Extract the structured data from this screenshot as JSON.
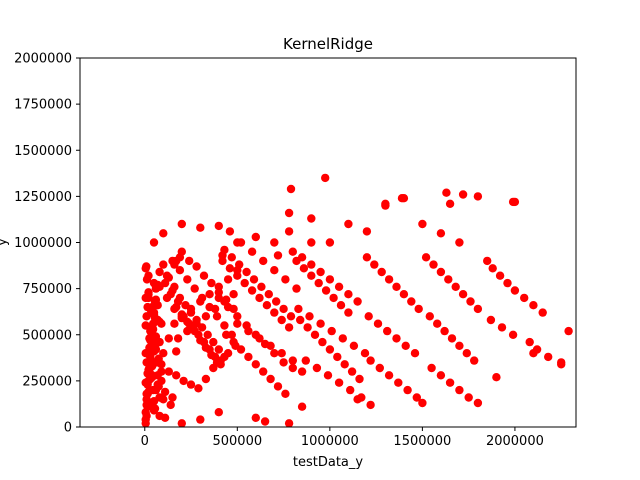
{
  "chart_data": {
    "type": "scatter",
    "title": "KernelRidge",
    "xlabel": "testData_y",
    "ylabel": "y",
    "xlim": [
      -350000,
      2330000
    ],
    "ylim": [
      0,
      2000000
    ],
    "xticks": [
      0,
      500000,
      1000000,
      1500000,
      2000000
    ],
    "xtick_labels": [
      "0",
      "500000",
      "1000000",
      "1500000",
      "2000000"
    ],
    "yticks": [
      0,
      250000,
      500000,
      750000,
      1000000,
      1250000,
      1500000,
      1750000,
      2000000
    ],
    "ytick_labels": [
      "0",
      "250000",
      "500000",
      "750000",
      "1000000",
      "1250000",
      "1500000",
      "1750000",
      "2000000"
    ],
    "grid": false,
    "marker_color": "#ff0000",
    "series": [
      {
        "x": [
          5000,
          10000,
          15000,
          20000,
          25000,
          30000,
          35000,
          40000,
          45000,
          50000,
          55000,
          60000,
          65000,
          70000,
          75000,
          80000,
          90000,
          100000,
          5000,
          10000,
          15000,
          20000,
          25000,
          30000,
          35000,
          40000,
          45000,
          50000,
          55000,
          60000,
          70000,
          80000,
          90000,
          5000,
          10000,
          15000,
          20000,
          25000,
          30000,
          40000,
          50000,
          60000,
          70000,
          80000,
          5000,
          10000,
          15000,
          20000,
          30000,
          40000,
          50000,
          60000,
          80000,
          5000,
          12000,
          20000,
          30000,
          45000,
          60000,
          75000,
          5000,
          15000,
          25000,
          40000,
          55000,
          70000,
          8000,
          20000,
          35000,
          50000,
          70000,
          90000,
          10000,
          30000,
          50000,
          80000,
          110000,
          5000,
          25000,
          60000,
          100000,
          140000,
          5000,
          40000,
          90000,
          130000,
          170000,
          20000,
          50000,
          80000,
          120000,
          160000,
          200000,
          10000,
          40000,
          70000,
          110000,
          150000,
          120000,
          150000,
          180000,
          210000,
          240000,
          270000,
          300000,
          330000,
          360000,
          390000,
          110000,
          140000,
          170000,
          200000,
          230000,
          260000,
          290000,
          320000,
          350000,
          380000,
          410000,
          100000,
          130000,
          160000,
          190000,
          220000,
          250000,
          280000,
          310000,
          340000,
          370000,
          400000,
          430000,
          150000,
          190000,
          230000,
          270000,
          310000,
          350000,
          390000,
          430000,
          470000,
          200000,
          240000,
          280000,
          320000,
          360000,
          400000,
          440000,
          480000,
          130000,
          170000,
          210000,
          250000,
          290000,
          330000,
          370000,
          410000,
          450000,
          490000,
          160000,
          200000,
          250000,
          300000,
          350000,
          400000,
          450000,
          500000,
          180000,
          230000,
          280000,
          330000,
          380000,
          430000,
          480000,
          420000,
          460000,
          500000,
          540000,
          580000,
          620000,
          660000,
          700000,
          740000,
          780000,
          440000,
          480000,
          520000,
          560000,
          600000,
          640000,
          680000,
          720000,
          760000,
          400000,
          450000,
          500000,
          550000,
          600000,
          650000,
          700000,
          750000,
          800000,
          850000,
          430000,
          470000,
          510000,
          550000,
          590000,
          630000,
          670000,
          710000,
          750000,
          790000,
          460000,
          520000,
          580000,
          640000,
          700000,
          760000,
          820000,
          500000,
          560000,
          620000,
          680000,
          740000,
          800000,
          820000,
          860000,
          900000,
          940000,
          980000,
          1020000,
          1060000,
          1100000,
          840000,
          880000,
          920000,
          960000,
          1000000,
          1040000,
          1080000,
          1120000,
          1160000,
          800000,
          850000,
          900000,
          950000,
          1000000,
          1050000,
          1100000,
          1150000,
          830000,
          890000,
          950000,
          1010000,
          1070000,
          1130000,
          1190000,
          870000,
          930000,
          990000,
          1050000,
          1110000,
          1170000,
          1200000,
          1240000,
          1280000,
          1320000,
          1360000,
          1400000,
          1440000,
          1480000,
          1210000,
          1260000,
          1310000,
          1360000,
          1410000,
          1460000,
          1220000,
          1270000,
          1320000,
          1370000,
          1420000,
          1470000,
          1500000,
          1520000,
          1560000,
          1600000,
          1640000,
          1680000,
          1720000,
          1760000,
          1800000,
          1540000,
          1580000,
          1620000,
          1660000,
          1700000,
          1740000,
          1780000,
          1550000,
          1600000,
          1650000,
          1700000,
          1750000,
          1800000,
          1850000,
          1880000,
          1920000,
          1960000,
          2000000,
          2050000,
          2100000,
          2150000,
          1870000,
          1930000,
          1990000,
          2080000,
          2120000,
          2180000,
          2250000,
          2290000,
          50000,
          100000,
          200000,
          300000,
          400000,
          500000,
          600000,
          700000,
          780000,
          900000,
          1000000,
          1100000,
          1200000,
          1300000,
          1400000,
          1500000,
          1600000,
          1700000,
          1800000,
          2000000,
          790000,
          975000,
          1630000,
          1720000,
          1990000,
          1300000,
          1390000,
          1650000,
          780000,
          900000,
          200000,
          300000,
          400000,
          600000,
          650000,
          780000,
          850000,
          1150000,
          1220000,
          1900000,
          2100000,
          2250000,
          420000,
          720000,
          160000,
          170000,
          190000
        ],
        "y": [
          40000,
          120000,
          180000,
          250000,
          320000,
          380000,
          440000,
          500000,
          560000,
          620000,
          680000,
          420000,
          350000,
          280000,
          220000,
          160000,
          300000,
          400000,
          550000,
          600000,
          650000,
          700000,
          480000,
          520000,
          360000,
          270000,
          200000,
          140000,
          100000,
          750000,
          580000,
          460000,
          340000,
          80000,
          150000,
          230000,
          310000,
          390000,
          470000,
          540000,
          610000,
          690000,
          770000,
          840000,
          20000,
          60000,
          110000,
          190000,
          260000,
          330000,
          410000,
          490000,
          570000,
          860000,
          800000,
          720000,
          640000,
          530000,
          450000,
          370000,
          240000,
          290000,
          430000,
          510000,
          590000,
          660000,
          870000,
          730000,
          620000,
          470000,
          350000,
          250000,
          180000,
          130000,
          90000,
          60000,
          50000,
          400000,
          300000,
          200000,
          150000,
          120000,
          700000,
          650000,
          560000,
          480000,
          410000,
          820000,
          780000,
          760000,
          700000,
          640000,
          590000,
          350000,
          280000,
          230000,
          190000,
          160000,
          820000,
          740000,
          680000,
          600000,
          560000,
          520000,
          470000,
          430000,
          390000,
          350000,
          780000,
          720000,
          650000,
          610000,
          570000,
          540000,
          500000,
          460000,
          420000,
          380000,
          340000,
          880000,
          810000,
          760000,
          700000,
          660000,
          620000,
          580000,
          540000,
          500000,
          460000,
          420000,
          380000,
          900000,
          850000,
          800000,
          750000,
          700000,
          650000,
          600000,
          550000,
          500000,
          950000,
          900000,
          870000,
          820000,
          780000,
          730000,
          690000,
          640000,
          300000,
          280000,
          250000,
          230000,
          210000,
          260000,
          320000,
          360000,
          400000,
          440000,
          560000,
          600000,
          640000,
          680000,
          720000,
          760000,
          800000,
          850000,
          480000,
          520000,
          560000,
          600000,
          640000,
          680000,
          720000,
          900000,
          860000,
          820000,
          780000,
          740000,
          700000,
          660000,
          620000,
          580000,
          540000,
          500000,
          460000,
          420000,
          380000,
          340000,
          300000,
          260000,
          220000,
          180000,
          700000,
          650000,
          600000,
          550000,
          500000,
          450000,
          400000,
          350000,
          320000,
          300000,
          960000,
          920000,
          880000,
          840000,
          800000,
          760000,
          720000,
          680000,
          640000,
          600000,
          1060000,
          1000000,
          950000,
          900000,
          850000,
          800000,
          750000,
          560000,
          520000,
          480000,
          440000,
          400000,
          360000,
          900000,
          860000,
          820000,
          780000,
          740000,
          700000,
          660000,
          620000,
          580000,
          540000,
          500000,
          460000,
          420000,
          380000,
          340000,
          300000,
          260000,
          950000,
          920000,
          880000,
          840000,
          800000,
          760000,
          720000,
          680000,
          640000,
          600000,
          560000,
          520000,
          480000,
          440000,
          400000,
          360000,
          320000,
          280000,
          240000,
          200000,
          160000,
          920000,
          880000,
          840000,
          800000,
          760000,
          720000,
          680000,
          640000,
          600000,
          560000,
          520000,
          480000,
          440000,
          400000,
          360000,
          320000,
          280000,
          240000,
          200000,
          160000,
          130000,
          920000,
          880000,
          840000,
          800000,
          760000,
          720000,
          680000,
          640000,
          600000,
          560000,
          520000,
          480000,
          440000,
          400000,
          360000,
          320000,
          280000,
          240000,
          200000,
          160000,
          130000,
          900000,
          860000,
          820000,
          780000,
          740000,
          700000,
          660000,
          620000,
          580000,
          540000,
          500000,
          460000,
          420000,
          380000,
          340000,
          520000,
          1000000,
          1050000,
          1100000,
          1080000,
          1090000,
          1000000,
          1030000,
          1000000,
          1060000,
          1000000,
          1000000,
          1100000,
          1060000,
          1200000,
          1240000,
          1100000,
          1050000,
          1000000,
          1250000,
          1220000,
          1290000,
          1350000,
          1270000,
          1260000,
          1220000,
          1210000,
          1240000,
          1210000,
          1160000,
          1130000,
          20000,
          40000,
          80000,
          50000,
          30000,
          20000,
          110000,
          150000,
          120000,
          270000,
          400000,
          350000,
          930000,
          930000,
          880000,
          900000,
          920000
        ]
      }
    ]
  }
}
